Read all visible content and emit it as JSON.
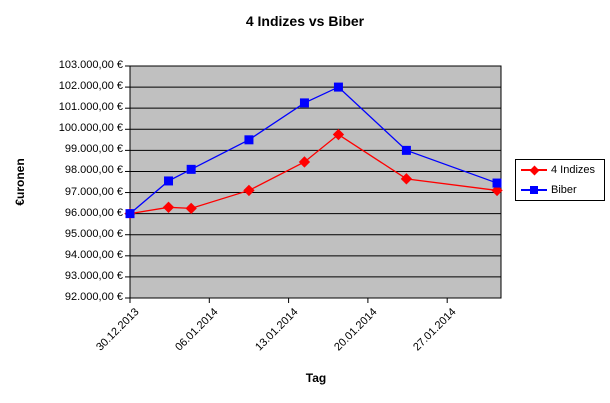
{
  "chart_data": {
    "type": "line",
    "title": "4 Indizes vs Biber",
    "xlabel": "Tag",
    "ylabel": "€uronen",
    "ylim": [
      92000,
      103000
    ],
    "y_step": 1000,
    "y_tick_labels": [
      "103.000,00 €",
      "102.000,00 €",
      "101.000,00 €",
      "100.000,00 €",
      "99.000,00 €",
      "98.000,00 €",
      "97.000,00 €",
      "96.000,00 €",
      "95.000,00 €",
      "94.000,00 €",
      "93.000,00 €",
      "92.000,00 €"
    ],
    "x_tick_labels": [
      "30.12.2013",
      "06.01.2014",
      "13.01.2014",
      "20.01.2014",
      "27.01.2014"
    ],
    "x_tick_days": [
      0,
      7,
      14,
      21,
      28
    ],
    "x_axis_span_days": 32.75,
    "x_days": [
      0,
      3.4,
      5.4,
      10.5,
      15.4,
      18.4,
      24.4,
      32.4
    ],
    "series": [
      {
        "name": "4 Indizes",
        "color": "#FF0000",
        "marker": "diamond",
        "values": [
          96000,
          96300,
          96250,
          97100,
          98450,
          99750,
          97650,
          97100
        ]
      },
      {
        "name": "Biber",
        "color": "#0000FF",
        "marker": "square",
        "values": [
          96000,
          97550,
          98100,
          99500,
          101250,
          102000,
          99000,
          97450
        ]
      }
    ],
    "grid": true,
    "legend_position": "right",
    "plot_bg": "#C0C0C0",
    "gridline_color": "#000000",
    "axis_color": "#000000",
    "text_color": "#000000",
    "chart_bg": "#FFFFFF"
  }
}
